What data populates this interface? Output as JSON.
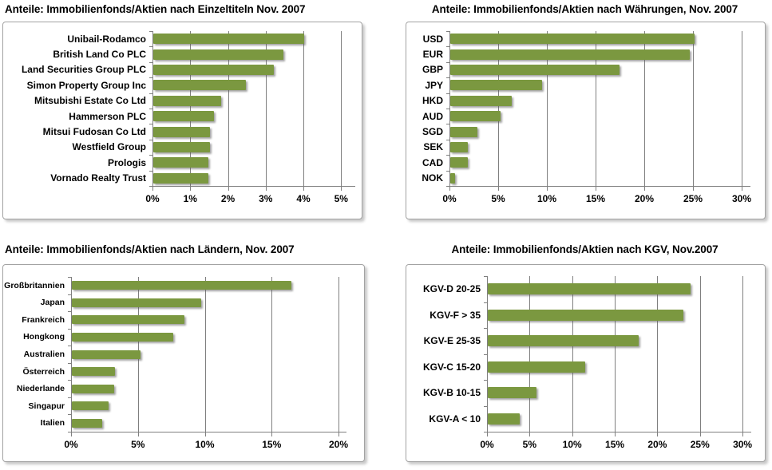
{
  "page": {
    "background": "#ffffff",
    "kind": "report-chart-grid"
  },
  "colors": {
    "bar_fill": "#7b9840",
    "grid_line": "#7f7f7f",
    "axis_line": "#7f7f7f",
    "box_border": "#a3a3a3",
    "title_text": "#000000"
  },
  "chart_data": [
    {
      "type": "bar",
      "orientation": "horizontal",
      "title": "Anteile: Immobilienfonds/Aktien nach Einzeltiteln Nov. 2007",
      "unit": "%",
      "categories": [
        "Unibail-Rodamco",
        "British Land Co PLC",
        "Land Securities Group PLC",
        "Simon Property Group Inc",
        "Mitsubishi Estate Co Ltd",
        "Hammerson PLC",
        "Mitsui Fudosan Co Ltd",
        "Westfield Group",
        "Prologis",
        "Vornado Realty Trust"
      ],
      "values": [
        4.0,
        3.45,
        3.2,
        2.45,
        1.8,
        1.6,
        1.5,
        1.5,
        1.45,
        1.45
      ],
      "xlim": [
        0,
        5
      ],
      "tick_values": [
        0,
        1,
        2,
        3,
        4,
        5
      ],
      "tick_labels": [
        "0%",
        "1%",
        "2%",
        "3%",
        "4%",
        "5%"
      ],
      "grid": true,
      "legend": "none"
    },
    {
      "type": "bar",
      "orientation": "horizontal",
      "title": "Anteile: Immobilienfonds/Aktien nach Währungen, Nov. 2007",
      "unit": "%",
      "categories": [
        "USD",
        "EUR",
        "GBP",
        "JPY",
        "HKD",
        "AUD",
        "SGD",
        "SEK",
        "CAD",
        "NOK"
      ],
      "values": [
        25.1,
        24.6,
        17.4,
        9.4,
        6.3,
        5.2,
        2.8,
        1.8,
        1.8,
        0.5
      ],
      "xlim": [
        0,
        30
      ],
      "tick_values": [
        0,
        5,
        10,
        15,
        20,
        25,
        30
      ],
      "tick_labels": [
        "0%",
        "5%",
        "10%",
        "15%",
        "20%",
        "25%",
        "30%"
      ],
      "grid": true,
      "legend": "none"
    },
    {
      "type": "bar",
      "orientation": "horizontal",
      "title": "Anteile: Immobilienfonds/Aktien nach Ländern,  Nov. 2007",
      "unit": "%",
      "categories": [
        "Großbritannien",
        "Japan",
        "Frankreich",
        "Hongkong",
        "Australien",
        "Österreich",
        "Niederlande",
        "Singapur",
        "Italien"
      ],
      "values": [
        16.4,
        9.7,
        8.4,
        7.6,
        5.15,
        3.2,
        3.15,
        2.75,
        2.25
      ],
      "xlim": [
        0,
        20
      ],
      "tick_values": [
        0,
        5,
        10,
        15,
        20
      ],
      "tick_labels": [
        "0%",
        "5%",
        "10%",
        "15%",
        "20%"
      ],
      "grid": true,
      "legend": "none"
    },
    {
      "type": "bar",
      "orientation": "horizontal",
      "title": "Anteile: Immobilienfonds/Aktien nach KGV, Nov.2007",
      "unit": "%",
      "categories": [
        "KGV-D 20-25",
        "KGV-F > 35",
        "KGV-E 25-35",
        "KGV-C 15-20",
        "KGV-B 10-15",
        "KGV-A < 10"
      ],
      "values": [
        23.8,
        23.0,
        17.7,
        11.4,
        5.75,
        3.75
      ],
      "xlim": [
        0,
        30
      ],
      "tick_values": [
        0,
        5,
        10,
        15,
        20,
        25,
        30
      ],
      "tick_labels": [
        "0%",
        "5%",
        "10%",
        "15%",
        "20%",
        "25%",
        "30%"
      ],
      "grid": true,
      "legend": "none"
    }
  ]
}
